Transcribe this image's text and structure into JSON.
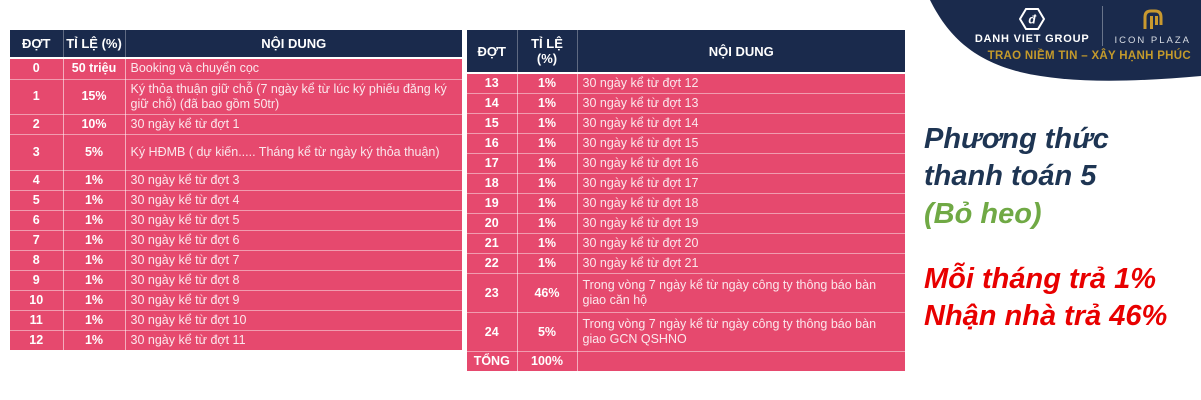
{
  "colors": {
    "header_navy": "#1a2a4c",
    "row_pink": "#e6496e",
    "title_navy": "#1e3553",
    "subtitle_green": "#70a945",
    "note_red": "#e80000",
    "brand_gold": "#c49a2b"
  },
  "left_table": {
    "headers": [
      "ĐỢT",
      "TỈ LỆ (%)",
      "NỘI DUNG"
    ],
    "rows": [
      [
        "0",
        "50 triệu",
        "Booking và chuyển cọc"
      ],
      [
        "1",
        "15%",
        "Ký thỏa thuận giữ chỗ (7 ngày kể từ lúc ký phiếu đăng ký giữ chỗ) (đã bao gồm 50tr)"
      ],
      [
        "2",
        "10%",
        "30 ngày kể từ đợt 1"
      ],
      [
        "3",
        "5%",
        "Ký HĐMB ( dự kiến..... Tháng kể từ ngày ký thỏa thuận)"
      ],
      [
        "4",
        "1%",
        "30 ngày kể từ đợt 3"
      ],
      [
        "5",
        "1%",
        "30 ngày kể từ đợt 4"
      ],
      [
        "6",
        "1%",
        "30 ngày kể từ đợt 5"
      ],
      [
        "7",
        "1%",
        "30 ngày kể từ đợt 6"
      ],
      [
        "8",
        "1%",
        "30 ngày kể từ đợt 7"
      ],
      [
        "9",
        "1%",
        "30 ngày kể từ đợt 8"
      ],
      [
        "10",
        "1%",
        "30 ngày kể từ đợt 9"
      ],
      [
        "11",
        "1%",
        "30 ngày kể từ đợt 10"
      ],
      [
        "12",
        "1%",
        "30 ngày kể từ đợt 11"
      ]
    ]
  },
  "right_table": {
    "headers": [
      "ĐỢT",
      "TỈ LỆ (%)",
      "NỘI DUNG"
    ],
    "rows": [
      [
        "13",
        "1%",
        "30 ngày kể từ đợt 12"
      ],
      [
        "14",
        "1%",
        "30 ngày kể từ đợt 13"
      ],
      [
        "15",
        "1%",
        "30 ngày kể từ đợt 14"
      ],
      [
        "16",
        "1%",
        "30 ngày kể từ đợt 15"
      ],
      [
        "17",
        "1%",
        "30 ngày kể từ đợt 16"
      ],
      [
        "18",
        "1%",
        "30 ngày kể từ đợt 17"
      ],
      [
        "19",
        "1%",
        "30 ngày kể từ đợt 18"
      ],
      [
        "20",
        "1%",
        "30 ngày kể từ đợt 19"
      ],
      [
        "21",
        "1%",
        "30 ngày kể từ đợt 20"
      ],
      [
        "22",
        "1%",
        "30 ngày kể từ đợt 21"
      ],
      [
        "23",
        "46%",
        "Trong vòng 7 ngày kể từ ngày công ty thông báo bàn giao căn hộ"
      ],
      [
        "24",
        "5%",
        "Trong vòng 7 ngày kể từ ngày công ty thông báo bàn giao GCN QSHNO"
      ],
      [
        "TỔNG",
        "100%",
        ""
      ]
    ]
  },
  "brand": {
    "group_name": "DANH VIET GROUP",
    "project_name": "ICON PLAZA",
    "tagline": "TRAO NIỀM TIN – XÂY HẠNH PHÚC"
  },
  "panel": {
    "title": "Phương thức thanh toán 5",
    "subtitle": "(Bỏ heo)",
    "note1": "Mỗi tháng trả 1%",
    "note2": "Nhận nhà trả 46%"
  }
}
